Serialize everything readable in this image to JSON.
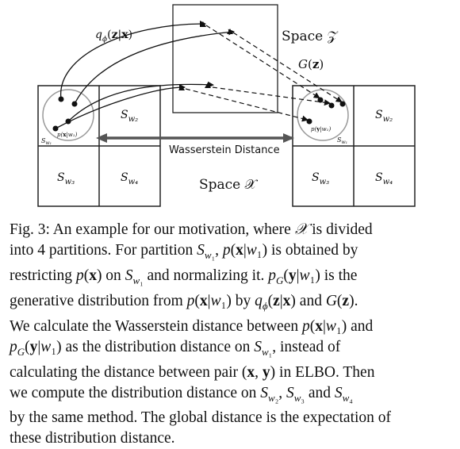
{
  "figure": {
    "space_z_label": "Space 𝒵",
    "space_x_label": "Space 𝒳",
    "encoder_label": "q_ϕ(z|x)",
    "generator_label": "G(z)",
    "distance_label": "Wasserstein Distance",
    "left_grid": {
      "cells": [
        "S_w2",
        "S_w3",
        "S_w4"
      ],
      "circle_label": "p(x|w₁)",
      "corner_label": "S_w1"
    },
    "right_grid": {
      "cells": [
        "S_w2",
        "S_w3",
        "S_w4"
      ],
      "circle_label": "p(y|w₁)",
      "corner_label": "S_w1"
    }
  },
  "caption": {
    "lines": [
      "Fig. 3: An example for our motivation, where 𝒳 is divided",
      "into 4 partitions. For partition S_w1, p(x|w₁) is obtained by",
      "restricting p(x) on S_w1 and normalizing it. p_G(y|w₁) is the",
      "generative distribution from p(x|w₁) by q_ϕ(z|x) and G(z).",
      "We calculate the Wasserstein distance between p(x|w₁) and",
      "p_G(y|w₁) as the distribution distance on S_w1, instead of",
      "calculating the distance between pair (x, y) in ELBO. Then",
      "we compute the distribution distance on S_w2, S_w3 and S_w4",
      "by the same method. The global distance is the expectation of",
      "these distribution distance."
    ]
  }
}
